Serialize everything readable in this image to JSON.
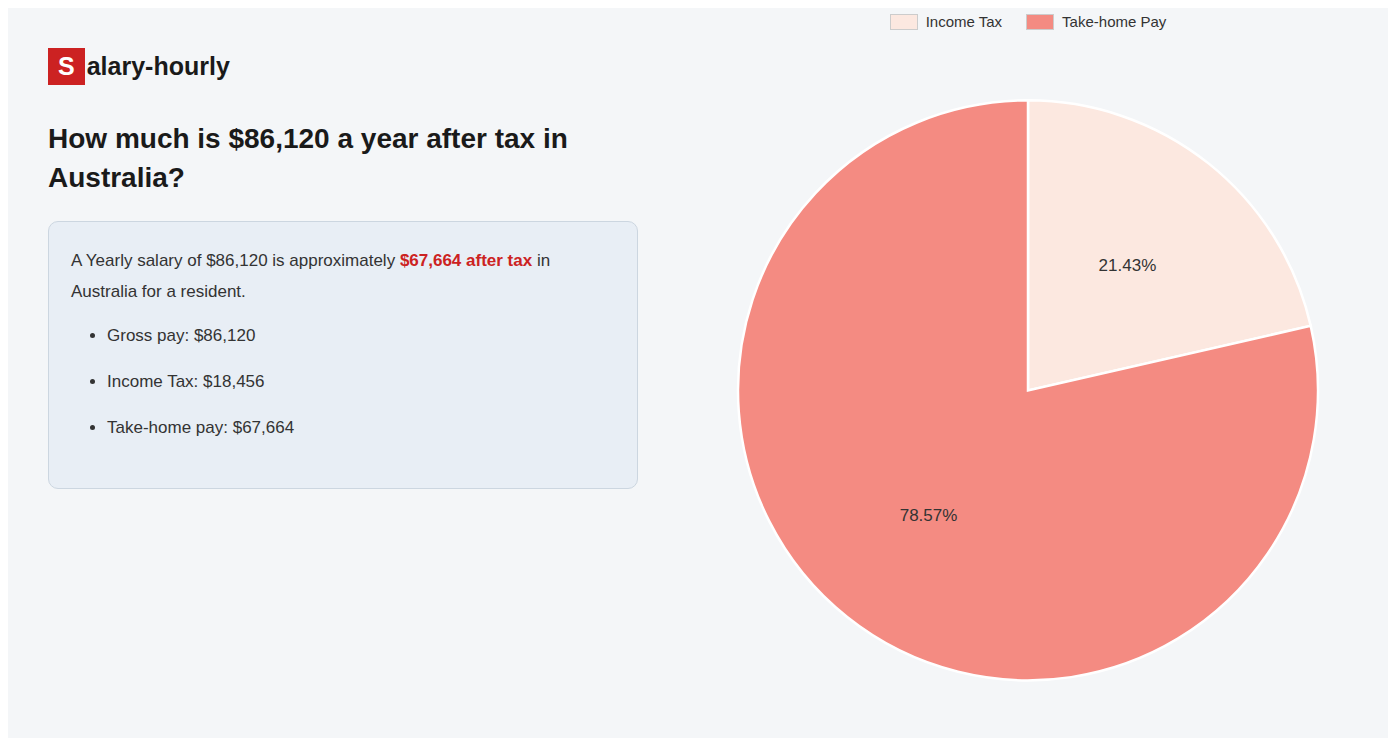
{
  "chart_data": {
    "type": "pie",
    "title": "How much is $86,120 a year after tax in Australia?",
    "categories": [
      "Income Tax",
      "Take-home Pay"
    ],
    "values": [
      21.43,
      78.57
    ],
    "value_labels": [
      "21.43%",
      "78.57%"
    ],
    "colors": [
      "#fce8e0",
      "#f48b82"
    ],
    "data_labels": true,
    "legend": "top",
    "annotations": [
      {
        "text": "S",
        "color": "#cc2222"
      },
      {
        "text": "alary-hourly"
      },
      {
        "text": "A Yearly salary of $86,120 is approximately "
      },
      {
        "text": "$67,664 after tax",
        "color": "#cc2222"
      },
      {
        "text": " in"
      },
      {
        "text": "Australia for a resident."
      },
      {
        "text": "Gross pay: $86,120"
      },
      {
        "text": "Income Tax: $18,456"
      },
      {
        "text": "Take-home pay: $67,664"
      }
    ]
  }
}
